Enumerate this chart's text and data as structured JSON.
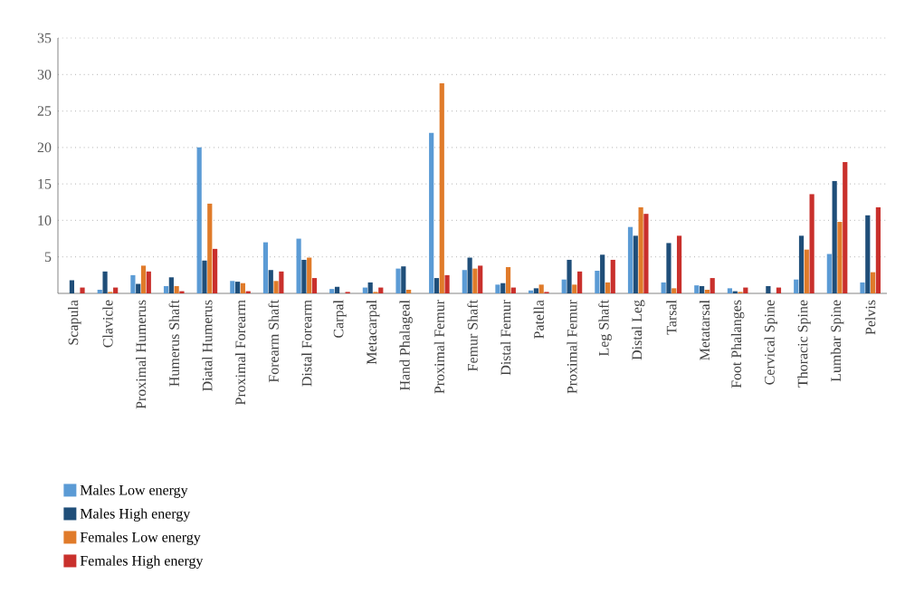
{
  "chart_data": {
    "type": "bar",
    "categories": [
      "Scapula",
      "Clavicle",
      "Proximal Humerus",
      "Humerus Shaft",
      "Diatal Humerus",
      "Proximal Forearm",
      "Forearm Shaft",
      "Distal Forearm",
      "Carpal",
      "Metacarpal",
      "Hand Phalageal",
      "Proximal Femur",
      "Femur Shaft",
      "Distal Femur",
      "Patella",
      "Proximal Femur",
      "Leg Shaft",
      "Distal Leg",
      "Tarsal",
      "Metatarsal",
      "Foot Phalanges",
      "Cervical Spine",
      "Thoracic Spine",
      "Lumbar Spine",
      "Pelvis"
    ],
    "series": [
      {
        "name": "Males Low energy",
        "color": "#5b9bd5",
        "values": [
          0,
          0.5,
          2.5,
          1.0,
          20,
          1.7,
          7.0,
          7.5,
          0.6,
          0.8,
          3.4,
          22,
          3.2,
          1.2,
          0.4,
          1.9,
          3.1,
          9.1,
          1.5,
          1.1,
          0.7,
          0,
          1.9,
          5.4,
          1.5
        ]
      },
      {
        "name": "Males High energy",
        "color": "#1f4e79",
        "values": [
          1.8,
          3.0,
          1.3,
          2.2,
          4.5,
          1.6,
          3.2,
          4.6,
          0.9,
          1.5,
          3.7,
          2.1,
          4.9,
          1.4,
          0.7,
          4.6,
          5.3,
          7.9,
          6.9,
          1.0,
          0.3,
          1.0,
          7.9,
          15.4,
          10.7
        ]
      },
      {
        "name": "Females Low energy",
        "color": "#e07b2a",
        "values": [
          0,
          0.2,
          3.8,
          1.0,
          12.3,
          1.4,
          1.7,
          4.9,
          0,
          0.2,
          0.5,
          28.8,
          3.4,
          3.6,
          1.2,
          1.2,
          1.5,
          11.8,
          0.7,
          0.5,
          0.2,
          0,
          6.0,
          9.8,
          2.9
        ]
      },
      {
        "name": "Females High energy",
        "color": "#c9302c",
        "values": [
          0.8,
          0.8,
          3.0,
          0.3,
          6.1,
          0.3,
          3.0,
          2.1,
          0.2,
          0.8,
          0,
          2.5,
          3.8,
          0.8,
          0.2,
          3.0,
          4.6,
          10.9,
          7.9,
          2.1,
          0.8,
          0.8,
          13.6,
          18.0,
          11.8
        ]
      }
    ],
    "ylim": [
      0,
      35
    ],
    "yticks": [
      5,
      10,
      15,
      20,
      25,
      30,
      35
    ],
    "grid": "y",
    "legend": "bottom left"
  }
}
